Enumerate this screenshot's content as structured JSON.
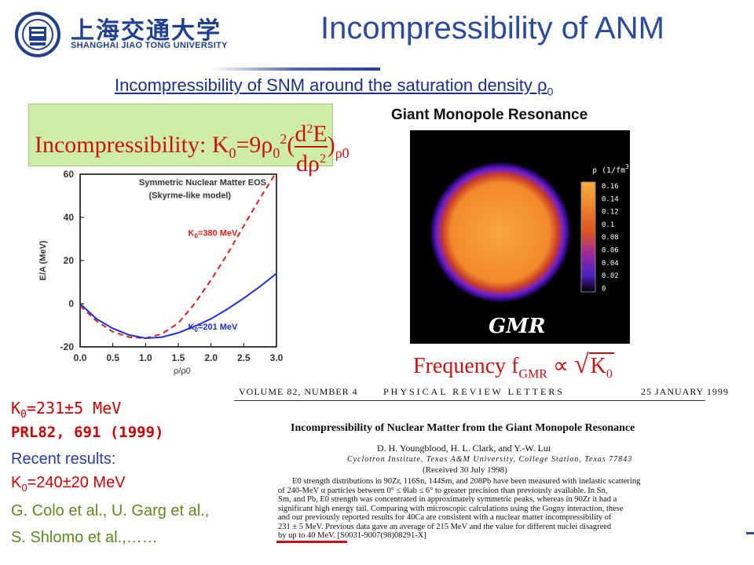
{
  "header": {
    "logo_cn": "上海交通大学",
    "logo_en": "SHANGHAI JIAO TONG UNIVERSITY",
    "title": "Incompressibility of ANM"
  },
  "subtitle": "Incompressibility of SNM around the saturation density ρ",
  "subtitle_sub": "0",
  "formula": {
    "label": "Incompressibility:",
    "text": "K"
  },
  "chart_data": {
    "type": "line",
    "title": "Symmetric Nuclear Matter EOS",
    "subtitle": "(Skyrme-like model)",
    "xlabel": "ρ/ρ0",
    "ylabel": "E/A (MeV)",
    "xlim": [
      0.0,
      3.0
    ],
    "ylim": [
      -20,
      60
    ],
    "xticks": [
      "0.0",
      "0.5",
      "1.0",
      "1.5",
      "2.0",
      "2.5",
      "3.0"
    ],
    "yticks": [
      "-20",
      "0",
      "20",
      "40",
      "60"
    ],
    "series": [
      {
        "name": "K0=380 MeV",
        "style": "dashed",
        "color": "#e0201b",
        "x": [
          0.0,
          0.25,
          0.5,
          0.75,
          1.0,
          1.25,
          1.5,
          1.75,
          2.0,
          2.25,
          2.5,
          2.75,
          2.98
        ],
        "y": [
          -1,
          -8,
          -13,
          -15.5,
          -16,
          -14,
          -9,
          0,
          11,
          23,
          36,
          49,
          60
        ]
      },
      {
        "name": "K0=201 MeV",
        "style": "solid",
        "color": "#1b2fd6",
        "x": [
          0.0,
          0.25,
          0.5,
          0.75,
          1.0,
          1.25,
          1.5,
          1.75,
          2.0,
          2.25,
          2.5,
          2.75,
          3.0
        ],
        "y": [
          0,
          -7,
          -11.5,
          -14.5,
          -16,
          -15.5,
          -13.5,
          -10.5,
          -7,
          -2.5,
          2.5,
          8,
          14
        ]
      }
    ],
    "labels": {
      "k380": "K",
      "k380_sub": "0",
      "k380_rest": "=380 MeV",
      "k201": "K",
      "k201_sub": "0",
      "k201_rest": "=201 MeV"
    }
  },
  "gmr": {
    "label": "Giant Monopole Resonance",
    "legend_title": "ρ (1/fm",
    "legend_title_sup": "3",
    "legend_ticks": [
      "0.16",
      "0.14",
      "0.12",
      "0.1",
      "0.08",
      "0.06",
      "0.04",
      "0.02",
      "0"
    ],
    "image_label": "GMR"
  },
  "frequency": {
    "text": "Frequency f",
    "sub": "GMR",
    "rest": "∝",
    "sqrt": "K",
    "sqrt_sub": "0"
  },
  "results": {
    "k0": "K",
    "k0_sub": "0",
    "k0_rest": "=231±5 MeV",
    "prl": "PRL82, 691 (1999)",
    "recent": "Recent results:",
    "k0_recent": "K",
    "k0_recent_sub": "0",
    "k0_recent_rest": "=240±20 MeV",
    "authors1": "G. Colo et al., U. Garg et al.,",
    "authors2": "S. Shlomo et al.,……"
  },
  "paper": {
    "volume": "VOLUME 82, NUMBER 4",
    "journal": "PHYSICAL REVIEW LETTERS",
    "date": "25 JANUARY 1999",
    "title": "Incompressibility of Nuclear Matter from the Giant Monopole Resonance",
    "authors": "D. H. Youngblood, H. L. Clark, and Y.-W. Lui",
    "affiliation": "Cyclotron Institute, Texas A&M University, College Station, Texas 77843",
    "received": "(Received 30 July 1998)",
    "abstract_lines": [
      "E0 strength distributions in 90Zr, 116Sn, 144Sm, and 208Pb have been measured with inelastic scattering",
      "of 240-MeV α particles between 0° ≤ θlab ≤ 6° to greater precision than previously available.  In Sn,",
      "Sm, and Pb, E0 strength was concentrated in approximately symmetric peaks, whereas in 90Zr it had a",
      "significant high energy tail.  Comparing with microscopic calculations using the Gogny interaction, these",
      "and our previously reported results for 40Ca are consistent with a nuclear matter incompressibility of",
      "231 ± 5 MeV.  Previous data gave an average of 215 MeV and the value for different nuclei disagreed",
      "by up to 40 MeV.   [S0031-9007(98)08291-X]"
    ]
  }
}
